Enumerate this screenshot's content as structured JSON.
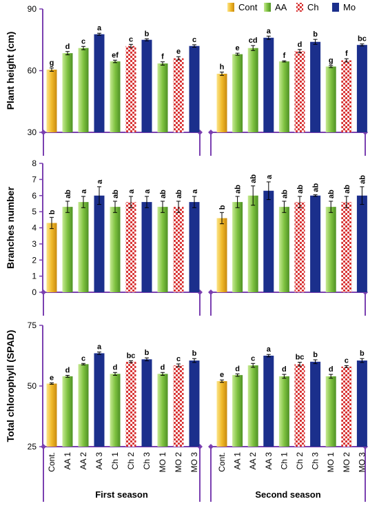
{
  "legend": [
    {
      "name": "Cont",
      "color": "#f0b92a"
    },
    {
      "name": "AA",
      "color": "#7fc241"
    },
    {
      "name": "Ch",
      "color": "#d72f2f"
    },
    {
      "name": "Mo",
      "color": "#1b2f8c"
    }
  ],
  "categories": [
    "Cont.",
    "AA 1",
    "AA 2",
    "AA 3",
    "Ch 1",
    "Ch 2",
    "Ch 3",
    "MO 1",
    "MO 2",
    "MO 3"
  ],
  "groups": [
    "cont",
    "aa",
    "aa",
    "mo",
    "aa",
    "ch",
    "mo",
    "aa",
    "ch",
    "mo"
  ],
  "seasons": [
    "First season",
    "Second season"
  ],
  "chart_data": [
    {
      "type": "bar",
      "ylabel": "Plant height (cm)",
      "ylim": [
        30,
        90
      ],
      "yticks": [
        30,
        60,
        90
      ],
      "categories": [
        "Cont.",
        "AA 1",
        "AA 2",
        "AA 3",
        "Ch 1",
        "Ch 2",
        "Ch 3",
        "MO 1",
        "MO 2",
        "MO 3"
      ],
      "series": [
        {
          "values": [
            60.5,
            68.5,
            71.0,
            77.7,
            64.5,
            72.0,
            75.0,
            63.5,
            66.0,
            72.0
          ],
          "errors": [
            0.8,
            0.8,
            0.8,
            0.5,
            0.6,
            0.8,
            0.5,
            0.8,
            0.8,
            0.6
          ],
          "letters": [
            "g",
            "d",
            "c",
            "a",
            "ef",
            "c",
            "b",
            "f",
            "e",
            "c"
          ]
        },
        {
          "values": [
            58.5,
            68.0,
            71.0,
            76.0,
            64.5,
            69.5,
            74.0,
            62.0,
            65.0,
            72.5
          ],
          "errors": [
            0.8,
            0.5,
            1.2,
            0.8,
            0.3,
            0.8,
            1.2,
            0.5,
            0.8,
            0.5
          ],
          "letters": [
            "h",
            "e",
            "cd",
            "a",
            "f",
            "d",
            "b",
            "g",
            "f",
            "bc"
          ]
        }
      ]
    },
    {
      "type": "bar",
      "ylabel": "Branches number",
      "ylim": [
        0,
        8
      ],
      "yticks": [
        0,
        1,
        2,
        3,
        4,
        5,
        6,
        7,
        8
      ],
      "categories": [
        "Cont.",
        "AA 1",
        "AA 2",
        "AA 3",
        "Ch 1",
        "Ch 2",
        "Ch 3",
        "MO 1",
        "MO 2",
        "MO 3"
      ],
      "series": [
        {
          "values": [
            4.3,
            5.3,
            5.6,
            6.0,
            5.3,
            5.6,
            5.6,
            5.3,
            5.3,
            5.6
          ],
          "errors": [
            0.35,
            0.35,
            0.35,
            0.55,
            0.35,
            0.35,
            0.35,
            0.35,
            0.35,
            0.35
          ],
          "letters": [
            "b",
            "ab",
            "a",
            "a",
            "ab",
            "a",
            "a",
            "ab",
            "ab",
            "a"
          ]
        },
        {
          "values": [
            4.6,
            5.6,
            6.0,
            6.3,
            5.3,
            5.6,
            6.0,
            5.3,
            5.6,
            6.0
          ],
          "errors": [
            0.35,
            0.35,
            0.6,
            0.55,
            0.35,
            0.35,
            0.05,
            0.35,
            0.35,
            0.55
          ],
          "letters": [
            "b",
            "ab",
            "ab",
            "a",
            "ab",
            "ab",
            "ab",
            "ab",
            "ab",
            "ab"
          ]
        }
      ]
    },
    {
      "type": "bar",
      "ylabel": "Total chlorophyll (SPAD)",
      "ylim": [
        25,
        75
      ],
      "yticks": [
        25,
        50,
        75
      ],
      "categories": [
        "Cont.",
        "AA 1",
        "AA 2",
        "AA 3",
        "Ch 1",
        "Ch 2",
        "Ch 3",
        "MO 1",
        "MO 2",
        "MO 3"
      ],
      "series": [
        {
          "values": [
            51.0,
            54.0,
            59.0,
            63.5,
            55.0,
            60.0,
            61.0,
            55.0,
            58.5,
            60.5
          ],
          "errors": [
            0.3,
            0.4,
            0.3,
            0.5,
            0.6,
            0.4,
            0.6,
            0.6,
            0.6,
            0.8
          ],
          "letters": [
            "e",
            "d",
            "c",
            "a",
            "d",
            "bc",
            "b",
            "d",
            "c",
            "b"
          ]
        },
        {
          "values": [
            52.0,
            54.5,
            58.5,
            62.5,
            54.0,
            59.0,
            60.0,
            54.0,
            58.0,
            60.5
          ],
          "errors": [
            0.5,
            0.5,
            0.8,
            0.5,
            0.8,
            0.8,
            0.8,
            0.8,
            0.4,
            0.8
          ],
          "letters": [
            "e",
            "d",
            "c",
            "a",
            "d",
            "bc",
            "b",
            "d",
            "c",
            "b"
          ]
        }
      ]
    }
  ]
}
